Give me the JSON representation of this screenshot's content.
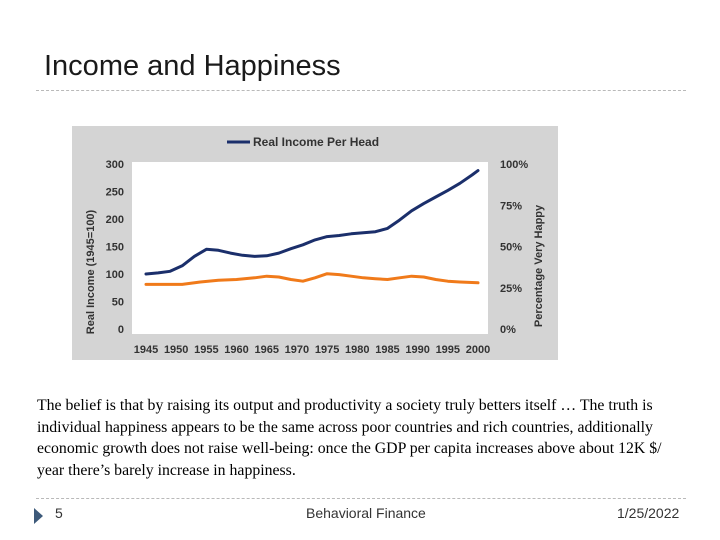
{
  "slide": {
    "title": "Income and Happiness",
    "body": "The belief is that by raising its output and productivity a society truly betters itself … The truth is individual happiness appears to be the same across poor countries and rich countries, additionally economic growth does not raise well-being: once the GDP per capita increases above about 12K $/ year there’s barely increase in happiness.",
    "footer": {
      "slide_number": "5",
      "center": "Behavioral Finance",
      "date": "1/25/2022"
    }
  },
  "colors": {
    "chart_background": "#d4d4d4",
    "income_line": "#1b2f6b",
    "happiness_line": "#f07a1a"
  },
  "chart_data": {
    "type": "line",
    "title": "",
    "legend": {
      "label": "Real Income Per Head",
      "placement": "top-center"
    },
    "xlabel": "",
    "ylabel": "Real Income (1945=100)",
    "y2label": "Percentage Very Happy",
    "xlim": [
      1945,
      2000
    ],
    "ylim": [
      0,
      300
    ],
    "y2lim": [
      0,
      100
    ],
    "x_ticks": [
      "1945",
      "1950",
      "1955",
      "1960",
      "1965",
      "1970",
      "1975",
      "1980",
      "1985",
      "1990",
      "1995",
      "2000"
    ],
    "y_ticks": [
      "0",
      "50",
      "100",
      "150",
      "200",
      "250",
      "300"
    ],
    "y2_ticks": [
      "0%",
      "25%",
      "50%",
      "75%",
      "100%"
    ],
    "series": [
      {
        "name": "Real Income Per Head",
        "axis": "left",
        "x": [
          1945,
          1947,
          1949,
          1951,
          1953,
          1955,
          1957,
          1959,
          1961,
          1963,
          1965,
          1967,
          1969,
          1971,
          1973,
          1975,
          1977,
          1979,
          1981,
          1983,
          1985,
          1987,
          1989,
          1991,
          1993,
          1995,
          1997,
          1999,
          2000
        ],
        "values": [
          100,
          102,
          105,
          115,
          132,
          145,
          143,
          138,
          134,
          132,
          133,
          138,
          146,
          153,
          162,
          168,
          170,
          173,
          175,
          177,
          183,
          198,
          215,
          228,
          240,
          252,
          265,
          280,
          288
        ]
      },
      {
        "axis": "right",
        "x": [
          1945,
          1948,
          1951,
          1954,
          1957,
          1960,
          1963,
          1965,
          1967,
          1969,
          1971,
          1973,
          1975,
          1977,
          1979,
          1981,
          1983,
          1985,
          1987,
          1989,
          1991,
          1993,
          1995,
          1997,
          2000
        ],
        "values": [
          27,
          27,
          27,
          28.5,
          29.5,
          30,
          31,
          32,
          31.5,
          30,
          29,
          31,
          33.5,
          33,
          32,
          31,
          30.5,
          30,
          31,
          32,
          31.5,
          30,
          29,
          28.5,
          28
        ]
      }
    ]
  }
}
